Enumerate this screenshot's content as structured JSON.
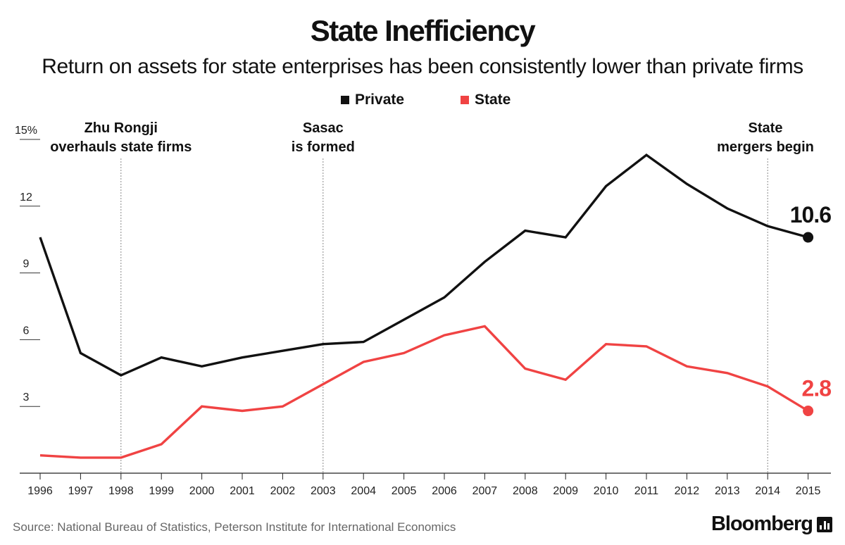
{
  "title": "State Inefficiency",
  "subtitle": "Return on assets for state enterprises has been consistently lower than private firms",
  "legend": [
    {
      "label": "Private",
      "color": "#111111"
    },
    {
      "label": "State",
      "color": "#f04343"
    }
  ],
  "source": "Source: National Bureau of Statistics, Peterson Institute for International Economics",
  "brand": "Bloomberg",
  "chart_data": {
    "type": "line",
    "x": [
      "1996",
      "1997",
      "1998",
      "1999",
      "2000",
      "2001",
      "2002",
      "2003",
      "2004",
      "2005",
      "2006",
      "2007",
      "2008",
      "2009",
      "2010",
      "2011",
      "2012",
      "2013",
      "2014",
      "2015"
    ],
    "series": [
      {
        "name": "Private",
        "color": "#111111",
        "values": [
          10.6,
          5.4,
          4.4,
          5.2,
          4.8,
          5.2,
          5.5,
          5.8,
          5.9,
          6.9,
          7.9,
          9.5,
          10.9,
          10.6,
          12.9,
          14.3,
          13.0,
          11.9,
          11.1,
          10.6
        ]
      },
      {
        "name": "State",
        "color": "#f04343",
        "values": [
          0.8,
          0.7,
          0.7,
          1.3,
          3.0,
          2.8,
          3.0,
          4.0,
          5.0,
          5.4,
          6.2,
          6.6,
          4.7,
          4.2,
          5.8,
          5.7,
          4.8,
          4.5,
          3.9,
          2.8
        ]
      }
    ],
    "end_labels": [
      "10.6",
      "2.8"
    ],
    "yticks": [
      {
        "value": 15,
        "label": "15%"
      },
      {
        "value": 12,
        "label": "12"
      },
      {
        "value": 9,
        "label": "9"
      },
      {
        "value": 6,
        "label": "6"
      },
      {
        "value": 3,
        "label": "3"
      }
    ],
    "ylim": [
      0,
      15
    ],
    "annotations": [
      {
        "x": "1998",
        "lines": [
          "Zhu Rongji",
          "overhauls state firms"
        ]
      },
      {
        "x": "2003",
        "lines": [
          "Sasac",
          "is formed"
        ]
      },
      {
        "x": "2014",
        "lines": [
          "State",
          "mergers begin"
        ]
      }
    ],
    "grid": false,
    "legend_position": "top-center"
  }
}
